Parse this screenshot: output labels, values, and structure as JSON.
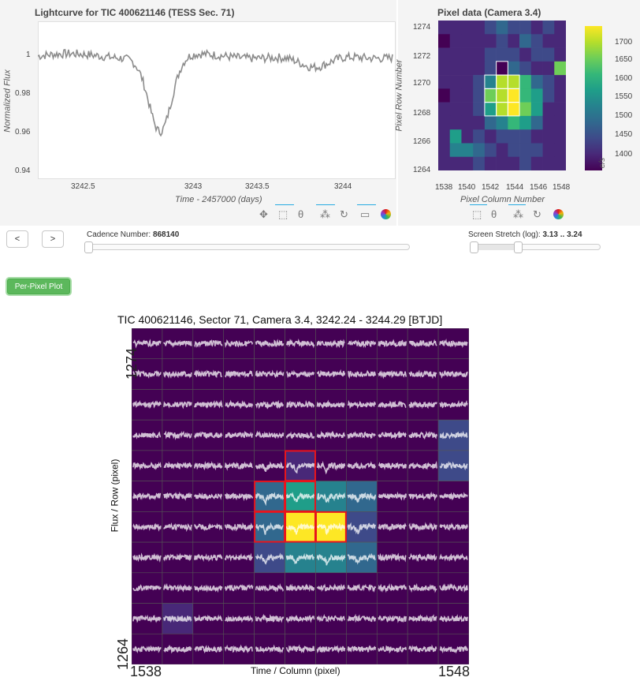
{
  "lightcurve": {
    "title": "Lightcurve for TIC 400621146 (TESS Sec. 71)",
    "xlabel": "Time - 2457000 (days)",
    "ylabel": "Normalized Flux",
    "xticks": [
      "3242.5",
      "3243",
      "3243.5",
      "3244"
    ],
    "yticks": [
      "1",
      "0.98",
      "0.96",
      "0.94"
    ]
  },
  "pixel": {
    "title": "Pixel data (Camera 3.4)",
    "xlabel": "Pixel Column Number",
    "ylabel": "Pixel Row Number",
    "xticks": [
      "1538",
      "1540",
      "1542",
      "1544",
      "1546",
      "1548"
    ],
    "yticks": [
      "1274",
      "1272",
      "1270",
      "1268",
      "1266",
      "1264"
    ],
    "cbar_ticks": [
      "1700",
      "1650",
      "1600",
      "1550",
      "1500",
      "1450",
      "1400"
    ],
    "cbar_label": "e/s"
  },
  "toolbar_left": [
    "pan-icon",
    "box-zoom-icon",
    "wheel-zoom-icon",
    "tap-icon",
    "reset-icon",
    "hover-icon",
    "bokeh-logo"
  ],
  "toolbar_right": [
    "box-select-icon",
    "wheel-zoom-icon",
    "tap-icon",
    "reset-icon",
    "bokeh-logo"
  ],
  "controls": {
    "prev_label": "<",
    "next_label": ">",
    "cadence_label": "Cadence Number:",
    "cadence_value": "868140",
    "stretch_label": "Screen Stretch (log):",
    "stretch_value": "3.13 .. 3.24",
    "per_pixel_label": "Per-Pixel Plot"
  },
  "perpixel": {
    "title": "TIC 400621146, Sector 71, Camera 3.4, 3242.24 - 3244.29 [BTJD]",
    "xlabel": "Time / Column (pixel)",
    "ylabel": "Flux / Row (pixel)",
    "x_min": "1538",
    "x_max": "1548",
    "y_min": "1264",
    "y_max": "1274"
  },
  "colors": {
    "viridis_dark": "#440154",
    "viridis_yellow": "#fde725",
    "aperture": "#e8141c",
    "button_green": "#5cb85c"
  }
}
